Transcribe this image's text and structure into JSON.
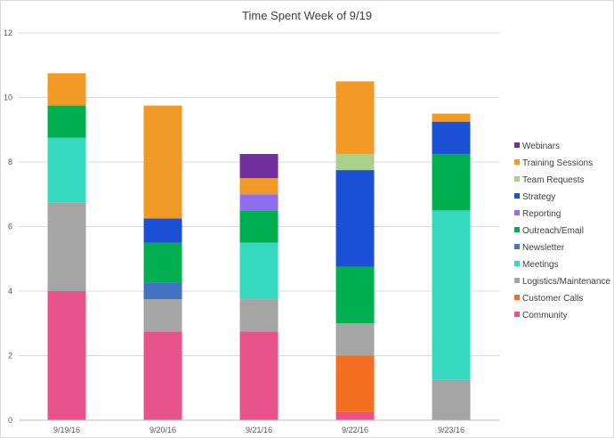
{
  "chart_data": {
    "type": "bar",
    "stacked": true,
    "title": "Time Spent Week of 9/19",
    "xlabel": "",
    "ylabel": "",
    "ylim": [
      0,
      12
    ],
    "yticks": [
      "0",
      "2",
      "4",
      "6",
      "8",
      "10",
      "12"
    ],
    "grid": true,
    "legend_position": "right",
    "categories": [
      "9/19/16",
      "9/20/16",
      "9/21/16",
      "9/22/16",
      "9/23/16"
    ],
    "series": [
      {
        "name": "Community",
        "color": "#e8538a",
        "values": [
          4,
          2.75,
          2.75,
          0.25,
          0
        ]
      },
      {
        "name": "Customer Calls",
        "color": "#f46f21",
        "values": [
          0,
          0,
          0,
          1.75,
          0
        ]
      },
      {
        "name": "Logistics/Maintenance",
        "color": "#a5a5a5",
        "values": [
          2.75,
          1,
          1,
          1,
          1.25
        ]
      },
      {
        "name": "Meetings",
        "color": "#35d9c0",
        "values": [
          2,
          0,
          1.75,
          0,
          5.25
        ]
      },
      {
        "name": "Newsletter",
        "color": "#4472c4",
        "values": [
          0,
          0.5,
          0,
          0,
          0
        ]
      },
      {
        "name": "Outreach/Email",
        "color": "#00b050",
        "values": [
          1,
          1.25,
          1,
          1.75,
          1.75
        ]
      },
      {
        "name": "Reporting",
        "color": "#8f6cf0",
        "values": [
          0,
          0,
          0.5,
          0,
          0
        ]
      },
      {
        "name": "Strategy",
        "color": "#1a4fd6",
        "values": [
          0,
          0.75,
          0,
          3,
          1
        ]
      },
      {
        "name": "Team Requests",
        "color": "#a9d18e",
        "values": [
          0,
          0,
          0,
          0.5,
          0
        ]
      },
      {
        "name": "Training Sessions",
        "color": "#f29a26",
        "values": [
          1,
          3.5,
          0.5,
          2.25,
          0.25
        ]
      },
      {
        "name": "Webinars",
        "color": "#7030a0",
        "values": [
          0,
          0,
          0.75,
          0,
          0
        ]
      }
    ]
  }
}
